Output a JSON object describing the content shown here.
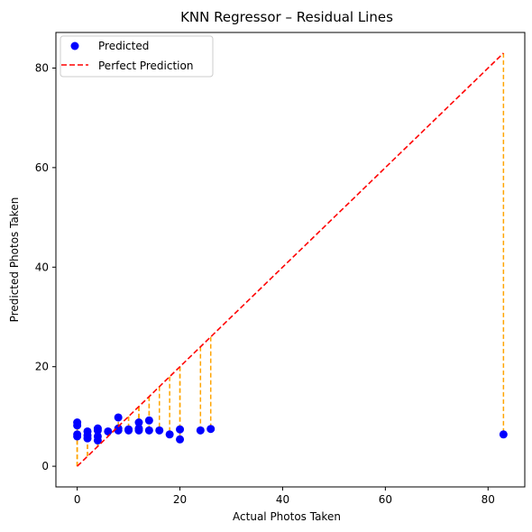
{
  "chart_data": {
    "type": "scatter",
    "title": "KNN Regressor – Residual Lines",
    "xlabel": "Actual Photos Taken",
    "ylabel": "Predicted Photos Taken",
    "xlim": [
      -4.15,
      87.15
    ],
    "ylim": [
      -4.15,
      87.15
    ],
    "xticks": [
      0,
      20,
      40,
      60,
      80
    ],
    "yticks": [
      0,
      20,
      40,
      60,
      80
    ],
    "grid": false,
    "legend": {
      "position": "top-left",
      "entries": [
        "Predicted",
        "Perfect Prediction"
      ]
    },
    "colors": {
      "points": "#0000ff",
      "ideal": "#ff0000",
      "residual": "#ffa500"
    },
    "series": [
      {
        "name": "Predicted",
        "kind": "scatter",
        "points": [
          [
            0,
            8.8
          ],
          [
            0,
            8.2
          ],
          [
            0,
            6.4
          ],
          [
            0,
            6.0
          ],
          [
            2,
            7.0
          ],
          [
            2,
            6.2
          ],
          [
            2,
            5.6
          ],
          [
            4,
            7.6
          ],
          [
            4,
            7.2
          ],
          [
            4,
            6.0
          ],
          [
            4,
            5.2
          ],
          [
            6,
            7.0
          ],
          [
            8,
            9.8
          ],
          [
            8,
            7.6
          ],
          [
            8,
            7.2
          ],
          [
            10,
            7.4
          ],
          [
            10,
            7.2
          ],
          [
            12,
            8.8
          ],
          [
            12,
            7.6
          ],
          [
            12,
            7.2
          ],
          [
            14,
            9.2
          ],
          [
            14,
            7.2
          ],
          [
            16,
            7.2
          ],
          [
            18,
            6.4
          ],
          [
            20,
            7.4
          ],
          [
            20,
            5.4
          ],
          [
            24,
            7.2
          ],
          [
            26,
            7.5
          ],
          [
            83,
            6.4
          ]
        ]
      },
      {
        "name": "Perfect Prediction",
        "kind": "line",
        "from": [
          0,
          0
        ],
        "to": [
          83,
          83
        ]
      }
    ]
  }
}
